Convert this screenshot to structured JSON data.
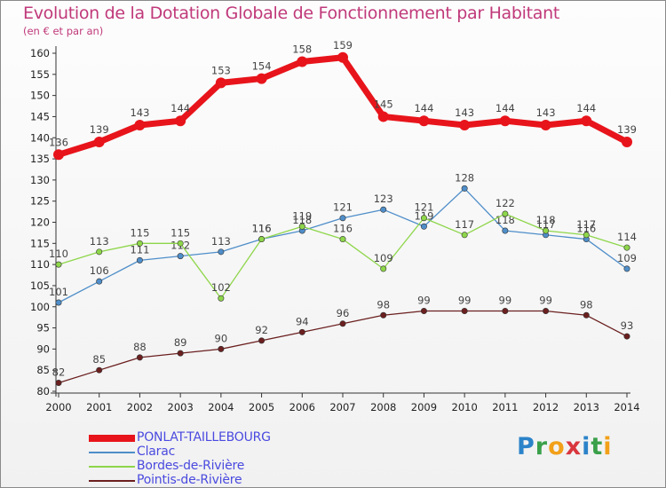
{
  "chart_data": {
    "type": "line",
    "title": "Evolution de la Dotation Globale de Fonctionnement par Habitant",
    "subtitle": "(en € et par an)",
    "xlabel": "",
    "ylabel": "",
    "x": [
      "2000",
      "2001",
      "2002",
      "2003",
      "2004",
      "2005",
      "2006",
      "2007",
      "2008",
      "2009",
      "2010",
      "2011",
      "2012",
      "2013",
      "2014"
    ],
    "ylim": [
      80,
      160
    ],
    "yticks": [
      "80",
      "85",
      "90",
      "95",
      "100",
      "105",
      "110",
      "115",
      "120",
      "125",
      "130",
      "135",
      "140",
      "145",
      "150",
      "155",
      "160"
    ],
    "grid": false,
    "legend_position": "bottom-left",
    "series": [
      {
        "name": "PONLAT-TAILLEBOURG",
        "color": "#e8141b",
        "values": [
          136,
          139,
          143,
          144,
          153,
          154,
          158,
          159,
          145,
          144,
          143,
          144,
          143,
          144,
          139
        ],
        "labels": [
          "136",
          "139",
          "143",
          "144",
          "153",
          "154",
          "158",
          "159",
          "145",
          "144",
          "143",
          "144",
          "143",
          "144",
          "139"
        ]
      },
      {
        "name": "Clarac",
        "color": "#4f8ec9",
        "values": [
          101,
          106,
          111,
          112,
          113,
          116,
          118,
          121,
          123,
          119,
          128,
          118,
          117,
          116,
          109
        ],
        "labels": [
          "101",
          "106",
          "111",
          "112",
          "113",
          "116",
          "118",
          "121",
          "123",
          "119",
          "128",
          "118",
          "117",
          "116",
          "109"
        ]
      },
      {
        "name": "Bordes-de-Rivière",
        "color": "#8ed64a",
        "values": [
          110,
          113,
          115,
          115,
          102,
          116,
          119,
          116,
          109,
          121,
          117,
          122,
          118,
          117,
          114
        ],
        "labels": [
          "110",
          "113",
          "115",
          "115",
          "102",
          "116",
          "119",
          "116",
          "109",
          "121",
          "117",
          "122",
          "118",
          "117",
          "114"
        ]
      },
      {
        "name": "Pointis-de-Rivière",
        "color": "#6b1f1f",
        "values": [
          82,
          85,
          88,
          89,
          90,
          92,
          94,
          96,
          98,
          99,
          99,
          99,
          99,
          98,
          93
        ],
        "labels": [
          "82",
          "85",
          "88",
          "89",
          "90",
          "92",
          "94",
          "96",
          "98",
          "99",
          "99",
          "99",
          "99",
          "98",
          "93"
        ]
      }
    ]
  },
  "logo": {
    "letters": [
      "P",
      "r",
      "o",
      "x",
      "i",
      "t",
      "i"
    ]
  }
}
